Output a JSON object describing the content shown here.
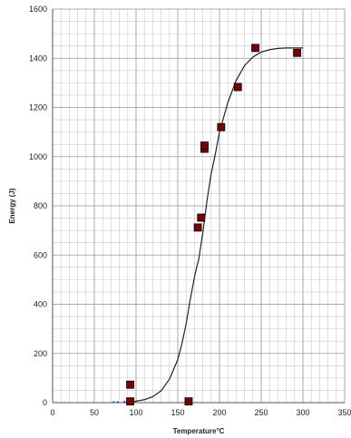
{
  "chart_data": {
    "type": "scatter",
    "xlabel": "Temperature°C",
    "ylabel": "Energy (J)",
    "xlim": [
      0,
      350
    ],
    "ylim": [
      0,
      1600
    ],
    "x_ticks": [
      0,
      50,
      100,
      150,
      200,
      250,
      300,
      350
    ],
    "y_ticks": [
      0,
      200,
      400,
      600,
      800,
      1000,
      1200,
      1400,
      1600
    ],
    "x_tick_labels": [
      "0",
      "50",
      "100",
      "150",
      "200",
      "250",
      "300",
      "350"
    ],
    "y_tick_labels": [
      "0",
      "200",
      "400",
      "600",
      "800",
      "1000",
      "1200",
      "1400",
      "1600"
    ],
    "grid": true,
    "grid_minor_step": {
      "x": 10,
      "y": 50
    },
    "series": [
      {
        "kind": "scatter",
        "marker": "square",
        "color": "#7a0000",
        "points": [
          {
            "x": 93,
            "y": 73
          },
          {
            "x": 93,
            "y": 5
          },
          {
            "x": 163,
            "y": 5
          },
          {
            "x": 174,
            "y": 712
          },
          {
            "x": 178,
            "y": 752
          },
          {
            "x": 182,
            "y": 1032
          },
          {
            "x": 182,
            "y": 1045
          },
          {
            "x": 202,
            "y": 1120
          },
          {
            "x": 222,
            "y": 1283
          },
          {
            "x": 243,
            "y": 1442
          },
          {
            "x": 293,
            "y": 1422
          }
        ]
      },
      {
        "kind": "fit-line",
        "color": "#222222",
        "points": [
          {
            "x": 93,
            "y": 3
          },
          {
            "x": 100,
            "y": 6
          },
          {
            "x": 110,
            "y": 12
          },
          {
            "x": 120,
            "y": 24
          },
          {
            "x": 130,
            "y": 48
          },
          {
            "x": 140,
            "y": 95
          },
          {
            "x": 150,
            "y": 175
          },
          {
            "x": 155,
            "y": 240
          },
          {
            "x": 160,
            "y": 320
          },
          {
            "x": 165,
            "y": 420
          },
          {
            "x": 170,
            "y": 510
          },
          {
            "x": 173,
            "y": 555
          },
          {
            "x": 175,
            "y": 580
          },
          {
            "x": 180,
            "y": 690
          },
          {
            "x": 185,
            "y": 820
          },
          {
            "x": 190,
            "y": 930
          },
          {
            "x": 195,
            "y": 1010
          },
          {
            "x": 200,
            "y": 1100
          },
          {
            "x": 210,
            "y": 1220
          },
          {
            "x": 220,
            "y": 1310
          },
          {
            "x": 230,
            "y": 1370
          },
          {
            "x": 240,
            "y": 1405
          },
          {
            "x": 250,
            "y": 1425
          },
          {
            "x": 260,
            "y": 1435
          },
          {
            "x": 270,
            "y": 1440
          },
          {
            "x": 280,
            "y": 1442
          },
          {
            "x": 290,
            "y": 1442
          },
          {
            "x": 300,
            "y": 1442
          }
        ]
      },
      {
        "kind": "small-markers",
        "marker": "dot",
        "color": "#1f5fb0",
        "points": [
          {
            "x": 73,
            "y": 2
          },
          {
            "x": 78,
            "y": 2
          },
          {
            "x": 86,
            "y": 3
          }
        ]
      }
    ]
  }
}
